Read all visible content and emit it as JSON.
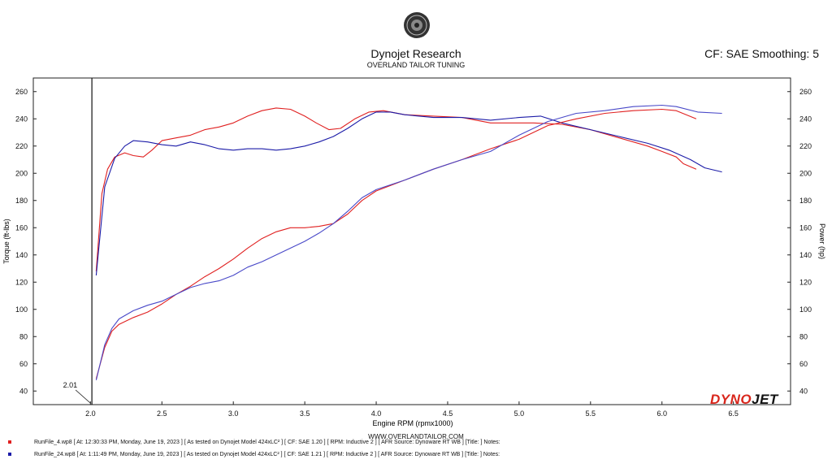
{
  "header": {
    "title": "Dynojet Research",
    "subtitle": "OVERLAND TAILOR TUNING",
    "cf_label": "CF: SAE Smoothing: 5"
  },
  "footer": {
    "url": "WWW.OVERLANDTAILOR.COM",
    "brand_part1": "DYNO",
    "brand_part2": "JET"
  },
  "chart_data": {
    "type": "line",
    "xlabel": "Engine RPM (rpmx1000)",
    "ylabel_left": "Torque (ft-lbs)",
    "ylabel_right": "Power (hp)",
    "xlim": [
      1.6,
      6.9
    ],
    "ylim": [
      30,
      270
    ],
    "x_ticks": [
      2.0,
      2.5,
      3.0,
      3.5,
      4.0,
      4.5,
      5.0,
      5.5,
      6.0,
      6.5
    ],
    "x_tick_labels": [
      "2.0",
      "2.5",
      "3.0",
      "3.5",
      "4.0",
      "4.5",
      "5.0",
      "5.5",
      "6.0",
      "6.5"
    ],
    "y_ticks": [
      40,
      60,
      80,
      100,
      120,
      140,
      160,
      180,
      200,
      220,
      240,
      260
    ],
    "y_tick_labels": [
      "40",
      "60",
      "80",
      "100",
      "120",
      "140",
      "160",
      "180",
      "200",
      "220",
      "240",
      "260"
    ],
    "cursor": {
      "x": 2.01,
      "label": "2.01"
    },
    "grid": false,
    "series": [
      {
        "name": "torque-run4",
        "color": "#e02020",
        "x": [
          2.04,
          2.08,
          2.12,
          2.17,
          2.24,
          2.3,
          2.37,
          2.43,
          2.5,
          2.6,
          2.7,
          2.8,
          2.9,
          3.0,
          3.1,
          3.2,
          3.3,
          3.4,
          3.5,
          3.58,
          3.67,
          3.75,
          3.85,
          3.95,
          4.05,
          4.2,
          4.4,
          4.6,
          4.8,
          4.95,
          5.1,
          5.3,
          5.5,
          5.7,
          5.9,
          6.0,
          6.1,
          6.15,
          6.24
        ],
        "y": [
          128,
          185,
          203,
          212,
          215,
          213,
          212,
          217,
          224,
          226,
          228,
          232,
          234,
          237,
          242,
          246,
          248,
          247,
          242,
          237,
          232,
          233,
          240,
          245,
          246,
          243,
          242,
          241,
          237,
          237,
          237,
          236,
          232,
          226,
          220,
          216,
          212,
          207,
          203
        ]
      },
      {
        "name": "torque-run24",
        "color": "#1c1ca8",
        "x": [
          2.04,
          2.1,
          2.17,
          2.24,
          2.3,
          2.4,
          2.5,
          2.6,
          2.7,
          2.8,
          2.9,
          3.0,
          3.1,
          3.2,
          3.3,
          3.4,
          3.5,
          3.6,
          3.7,
          3.8,
          3.9,
          4.0,
          4.1,
          4.2,
          4.4,
          4.6,
          4.8,
          5.0,
          5.15,
          5.3,
          5.5,
          5.7,
          5.9,
          6.05,
          6.2,
          6.3,
          6.42
        ],
        "y": [
          125,
          190,
          211,
          220,
          224,
          223,
          221,
          220,
          223,
          221,
          218,
          217,
          218,
          218,
          217,
          218,
          220,
          223,
          227,
          233,
          240,
          245,
          245,
          243,
          241,
          241,
          239,
          241,
          242,
          237,
          232,
          227,
          222,
          217,
          210,
          204,
          201
        ]
      },
      {
        "name": "power-run4",
        "color": "#e02020",
        "x": [
          2.04,
          2.1,
          2.15,
          2.2,
          2.3,
          2.4,
          2.5,
          2.6,
          2.7,
          2.8,
          2.9,
          3.0,
          3.1,
          3.2,
          3.3,
          3.4,
          3.5,
          3.6,
          3.7,
          3.8,
          3.9,
          4.0,
          4.2,
          4.4,
          4.6,
          4.8,
          5.0,
          5.2,
          5.4,
          5.6,
          5.8,
          6.0,
          6.1,
          6.24
        ],
        "y": [
          49,
          72,
          84,
          89,
          94,
          98,
          104,
          111,
          117,
          124,
          130,
          137,
          145,
          152,
          157,
          160,
          160,
          161,
          163,
          170,
          180,
          187,
          195,
          203,
          210,
          218,
          225,
          235,
          240,
          244,
          246,
          247,
          246,
          240
        ]
      },
      {
        "name": "power-run24",
        "color": "#4848c8",
        "x": [
          2.04,
          2.1,
          2.15,
          2.2,
          2.3,
          2.4,
          2.5,
          2.6,
          2.7,
          2.8,
          2.9,
          3.0,
          3.1,
          3.2,
          3.3,
          3.4,
          3.5,
          3.6,
          3.7,
          3.8,
          3.9,
          4.0,
          4.2,
          4.4,
          4.6,
          4.8,
          5.0,
          5.2,
          5.4,
          5.6,
          5.8,
          6.0,
          6.1,
          6.25,
          6.42
        ],
        "y": [
          48,
          74,
          86,
          93,
          99,
          103,
          106,
          111,
          116,
          119,
          121,
          125,
          131,
          135,
          140,
          145,
          150,
          156,
          163,
          172,
          182,
          188,
          195,
          203,
          210,
          216,
          228,
          238,
          244,
          246,
          249,
          250,
          249,
          245,
          244
        ]
      }
    ]
  },
  "legend": [
    {
      "color": "#e02020",
      "text": "RunFile_4.wp8 [ At: 12:30:33 PM, Monday, June 19, 2023 ] [ As tested on Dynojet Model 424xLC² ] [ CF: SAE 1.20 ] [ RPM: Inductive 2 ] [ AFR Source: Dynoware RT WB ] [Title: ]   Notes:"
    },
    {
      "color": "#1c1ca8",
      "text": "RunFile_24.wp8 [ At: 1:11:49 PM, Monday, June 19, 2023 ] [ As tested on Dynojet Model 424xLC² ] [ CF: SAE 1.21 ] [ RPM: Inductive 2 ] [ AFR Source: Dynoware RT WB ] [Title: ]   Notes:"
    }
  ]
}
